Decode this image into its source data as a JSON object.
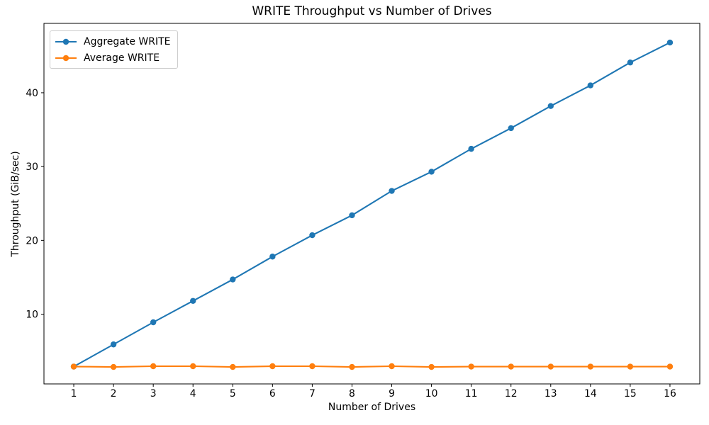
{
  "chart_data": {
    "type": "line",
    "title": "WRITE Throughput vs Number of Drives",
    "xlabel": "Number of Drives",
    "ylabel": "Throughput (GiB/sec)",
    "x": [
      1,
      2,
      3,
      4,
      5,
      6,
      7,
      8,
      9,
      10,
      11,
      12,
      13,
      14,
      15,
      16
    ],
    "series": [
      {
        "name": "Aggregate WRITE",
        "color": "#1f77b4",
        "marker": "circle",
        "values": [
          2.9,
          5.9,
          8.9,
          11.8,
          14.7,
          17.8,
          20.7,
          23.4,
          26.7,
          29.3,
          32.4,
          35.2,
          38.2,
          41.0,
          44.1,
          46.8
        ]
      },
      {
        "name": "Average WRITE",
        "color": "#ff7f0e",
        "marker": "circle",
        "values": [
          2.9,
          2.85,
          2.95,
          2.95,
          2.85,
          2.95,
          2.95,
          2.85,
          2.95,
          2.85,
          2.9,
          2.9,
          2.9,
          2.9,
          2.9,
          2.9
        ]
      }
    ],
    "x_ticks": [
      1,
      2,
      3,
      4,
      5,
      6,
      7,
      8,
      9,
      10,
      11,
      12,
      13,
      14,
      15,
      16
    ],
    "y_ticks": [
      10,
      20,
      30,
      40
    ],
    "xlim": [
      0.25,
      16.75
    ],
    "ylim": [
      0.55,
      49.4
    ],
    "grid": false,
    "legend_position": "upper-left",
    "text_color": "#000000",
    "spine_color": "#000000"
  }
}
